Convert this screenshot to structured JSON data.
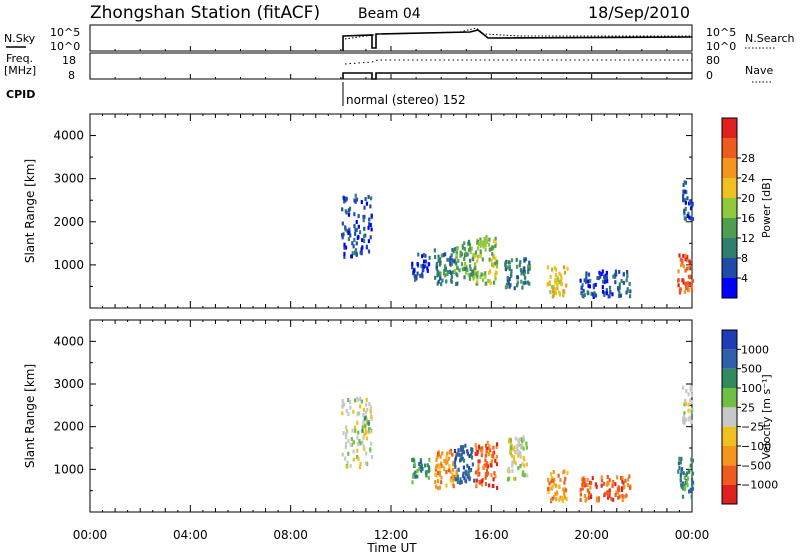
{
  "header": {
    "station": "Zhongshan Station (fitACF)",
    "beam": "Beam 04",
    "date": "18/Sep/2010"
  },
  "top_panel": {
    "left_label_1": "N.Sky",
    "left_label_2": "Freq.",
    "left_label_2b": "[MHz]",
    "left_label_3": "CPID",
    "right_label_1": "N.Search",
    "right_label_2": "Nave",
    "nsky_ticks": [
      "10^5",
      "10^0"
    ],
    "nsearch_ticks": [
      "10^5",
      "10^0"
    ],
    "freq_ticks": [
      "18",
      "8"
    ],
    "nave_ticks": [
      "80",
      "0"
    ],
    "cpid_text": "normal (stereo) 152"
  },
  "x_axis": {
    "label": "Time UT",
    "ticks": [
      "00:00",
      "04:00",
      "08:00",
      "12:00",
      "16:00",
      "20:00",
      "00:00"
    ]
  },
  "colors": {
    "power": [
      "#0000ff",
      "#1e4ca8",
      "#2f7f6e",
      "#4f9d4f",
      "#92c83e",
      "#f0c020",
      "#f7941e",
      "#ef5a1e",
      "#e0201e"
    ],
    "velocity": [
      "#e0201e",
      "#ef5a1e",
      "#f7941e",
      "#f0c020",
      "#c8c8c8",
      "#6ec044",
      "#2f8a5e",
      "#2f5fa8",
      "#1e3cb4"
    ]
  },
  "chart_data": [
    {
      "type": "heatmap",
      "panel": "power",
      "ylabel": "Slant Range [km]",
      "yticks": [
        "1000",
        "2000",
        "3000",
        "4000"
      ],
      "ylim": [
        0,
        4500
      ],
      "xlim_hours": [
        0,
        24
      ],
      "colorbar_label": "Power [dB]",
      "colorbar_ticks": [
        "4",
        "8",
        "12",
        "16",
        "20",
        "24",
        "28"
      ],
      "clusters": [
        {
          "t": [
            10.0,
            11.2
          ],
          "r": [
            1200,
            2700
          ],
          "level": 1
        },
        {
          "t": [
            12.8,
            13.5
          ],
          "r": [
            700,
            1300
          ],
          "level": 1
        },
        {
          "t": [
            13.7,
            14.6
          ],
          "r": [
            600,
            1400
          ],
          "level": 2
        },
        {
          "t": [
            14.5,
            15.3
          ],
          "r": [
            700,
            1600
          ],
          "level": 3
        },
        {
          "t": [
            15.3,
            16.2
          ],
          "r": [
            600,
            1700
          ],
          "level": 4
        },
        {
          "t": [
            16.5,
            17.5
          ],
          "r": [
            500,
            1200
          ],
          "level": 2
        },
        {
          "t": [
            18.2,
            19.0
          ],
          "r": [
            300,
            1000
          ],
          "level": 5
        },
        {
          "t": [
            19.5,
            21.5
          ],
          "r": [
            300,
            900
          ],
          "level": 1
        },
        {
          "t": [
            23.4,
            24.0
          ],
          "r": [
            400,
            1300
          ],
          "level": 7
        },
        {
          "t": [
            23.6,
            24.0
          ],
          "r": [
            2100,
            3000
          ],
          "level": 1
        }
      ]
    },
    {
      "type": "heatmap",
      "panel": "velocity",
      "ylabel": "Slant Range [km]",
      "yticks": [
        "1000",
        "2000",
        "3000",
        "4000"
      ],
      "ylim": [
        0,
        4500
      ],
      "xlim_hours": [
        0,
        24
      ],
      "colorbar_label": "Velocity [m s^-1]",
      "colorbar_ticks": [
        "-1000",
        "-500",
        "-100",
        "-25",
        "25",
        "100",
        "500",
        "1000"
      ],
      "clusters": [
        {
          "t": [
            10.0,
            11.2
          ],
          "r": [
            1100,
            2700
          ],
          "level": 4
        },
        {
          "t": [
            10.8,
            11.2
          ],
          "r": [
            1900,
            2300
          ],
          "level": 5
        },
        {
          "t": [
            12.8,
            13.5
          ],
          "r": [
            700,
            1300
          ],
          "level": 6
        },
        {
          "t": [
            13.7,
            14.6
          ],
          "r": [
            600,
            1500
          ],
          "level": 2
        },
        {
          "t": [
            14.5,
            15.3
          ],
          "r": [
            700,
            1600
          ],
          "level": 7
        },
        {
          "t": [
            15.3,
            16.2
          ],
          "r": [
            600,
            1700
          ],
          "level": 1
        },
        {
          "t": [
            16.6,
            17.4
          ],
          "r": [
            800,
            1800
          ],
          "level": 4
        },
        {
          "t": [
            18.2,
            19.0
          ],
          "r": [
            300,
            1000
          ],
          "level": 2
        },
        {
          "t": [
            19.5,
            21.5
          ],
          "r": [
            300,
            900
          ],
          "level": 1
        },
        {
          "t": [
            23.4,
            24.0
          ],
          "r": [
            400,
            1300
          ],
          "level": 6
        },
        {
          "t": [
            23.6,
            24.0
          ],
          "r": [
            2100,
            3000
          ],
          "level": 4
        }
      ]
    }
  ]
}
